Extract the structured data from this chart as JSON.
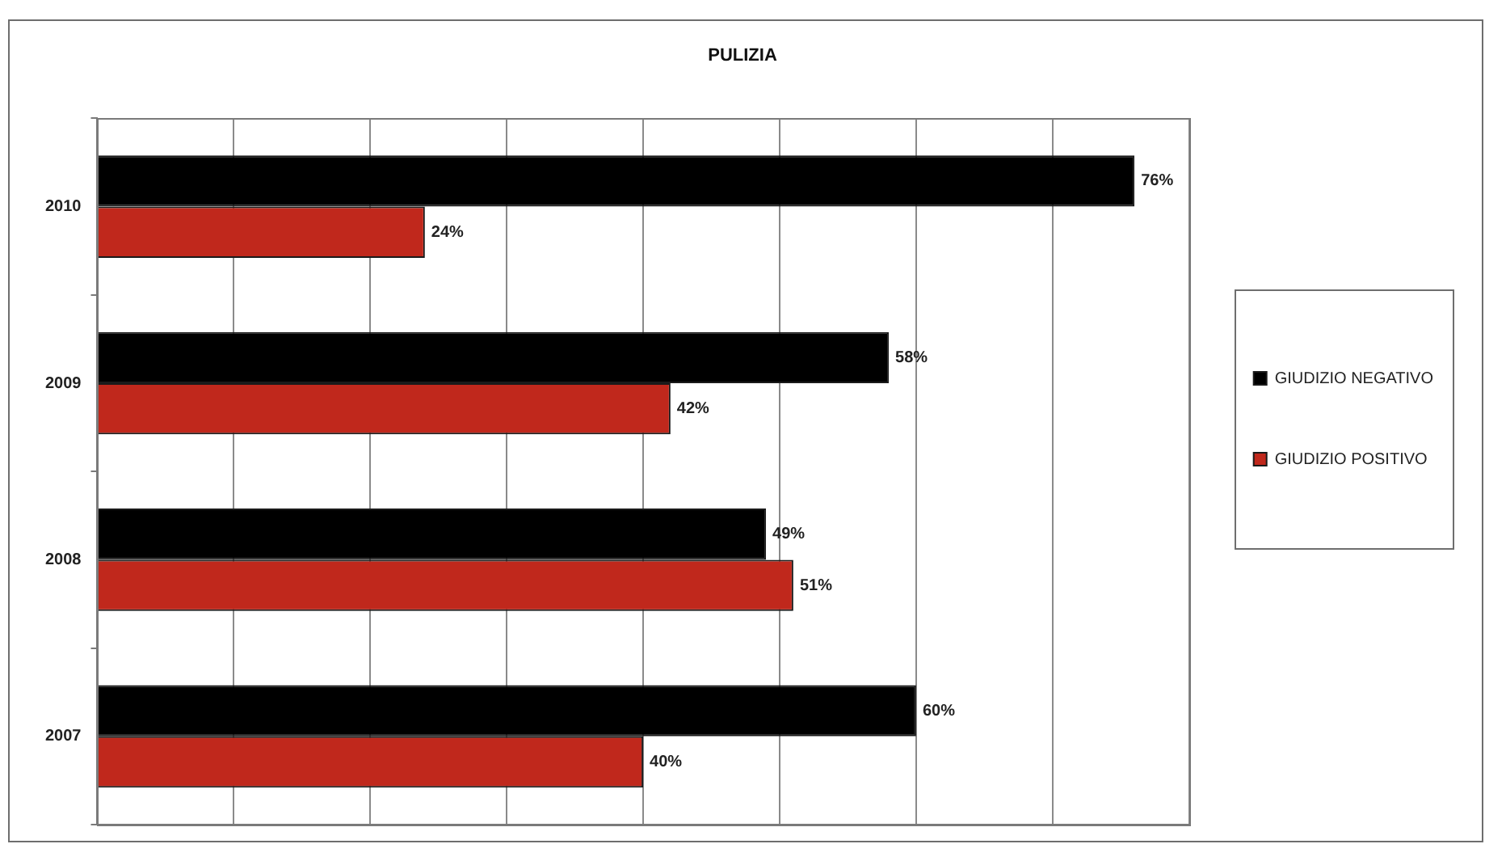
{
  "chart_data": {
    "type": "bar",
    "orientation": "horizontal",
    "title": "PULIZIA",
    "categories": [
      "2010",
      "2009",
      "2008",
      "2007"
    ],
    "series": [
      {
        "name": "GIUDIZIO NEGATIVO",
        "color": "#000000",
        "values": [
          76,
          58,
          49,
          60
        ],
        "value_labels": [
          "76%",
          "58%",
          "49%",
          "60%"
        ]
      },
      {
        "name": "GIUDIZIO POSITIVO",
        "color": "#c0281c",
        "values": [
          24,
          42,
          51,
          40
        ],
        "value_labels": [
          "24%",
          "42%",
          "51%",
          "40%"
        ]
      }
    ],
    "xlim": [
      0,
      80
    ],
    "xticks": [
      {
        "value": 0,
        "label": null
      },
      {
        "value": 10,
        "label": null
      },
      {
        "value": 20,
        "label": null
      },
      {
        "value": 30,
        "label": null
      },
      {
        "value": 40,
        "label": null
      },
      {
        "value": 50,
        "label": null
      },
      {
        "value": 60,
        "label": null
      },
      {
        "value": 70,
        "label": null
      },
      {
        "value": 80,
        "label": null
      }
    ],
    "tick_labels": "y",
    "grid": "x",
    "legend": "right"
  }
}
